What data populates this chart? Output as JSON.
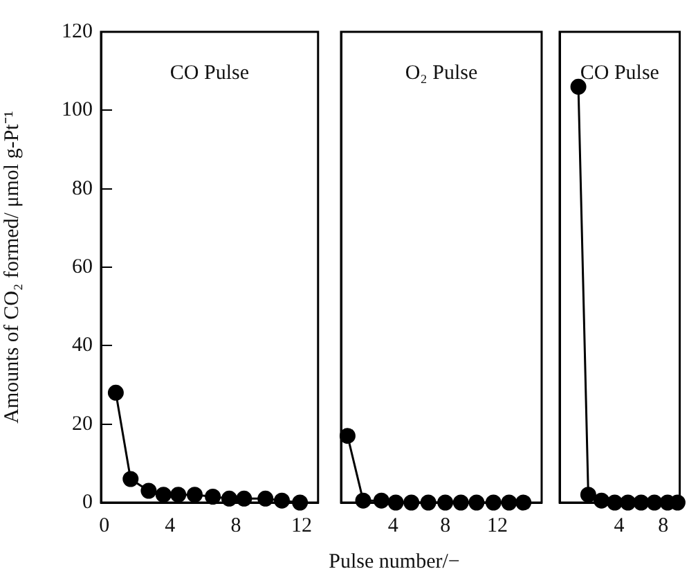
{
  "chart_data": [
    {
      "type": "line",
      "ylabel": "Amounts of CO₂ formed/ μmol g-Pt⁻¹",
      "annotations": [
        "CO Pulse"
      ],
      "xlim": [
        -0.2,
        13
      ],
      "xticks": [
        0,
        4,
        8,
        12
      ],
      "ylim": [
        0,
        120
      ],
      "yticks": [
        0,
        20,
        40,
        60,
        80,
        100,
        120
      ],
      "grid": false,
      "legend": false,
      "marker": "circle",
      "series": [
        {
          "color": "#000000",
          "x": [
            0.7,
            1.6,
            2.7,
            3.6,
            4.5,
            5.5,
            6.6,
            7.6,
            8.5,
            9.8,
            10.8,
            11.9
          ],
          "values": [
            28,
            6,
            3,
            2,
            2,
            2,
            1.5,
            1,
            1,
            1,
            0.5,
            0
          ]
        }
      ]
    },
    {
      "type": "line",
      "xlabel": "Pulse number/−",
      "annotations": [
        "O₂ Pulse"
      ],
      "xlim": [
        0,
        15.4
      ],
      "xticks": [
        4,
        8,
        12
      ],
      "ylim": [
        0,
        120
      ],
      "yticks": [
        0,
        20,
        40,
        60,
        80,
        100,
        120
      ],
      "tick_labels": "x",
      "grid": false,
      "legend": false,
      "marker": "circle",
      "series": [
        {
          "color": "#000000",
          "x": [
            0.5,
            1.7,
            3.1,
            4.2,
            5.4,
            6.7,
            8,
            9.2,
            10.4,
            11.7,
            12.9,
            14
          ],
          "values": [
            17,
            0.5,
            0.5,
            0,
            0,
            0,
            0,
            0,
            0,
            0,
            0,
            0
          ]
        }
      ]
    },
    {
      "type": "line",
      "annotations": [
        "CO Pulse"
      ],
      "xlim": [
        -1.4,
        9.5
      ],
      "xticks": [
        4,
        8
      ],
      "ylim": [
        0,
        120
      ],
      "yticks": [
        0,
        20,
        40,
        60,
        80,
        100,
        120
      ],
      "tick_labels": "x",
      "grid": false,
      "legend": false,
      "marker": "circle",
      "series": [
        {
          "color": "#000000",
          "x": [
            0.3,
            1.2,
            2.4,
            3.6,
            4.8,
            6,
            7.2,
            8.4,
            9.3
          ],
          "values": [
            106,
            2,
            0.5,
            0,
            0,
            0,
            0,
            0,
            0
          ]
        }
      ]
    }
  ]
}
